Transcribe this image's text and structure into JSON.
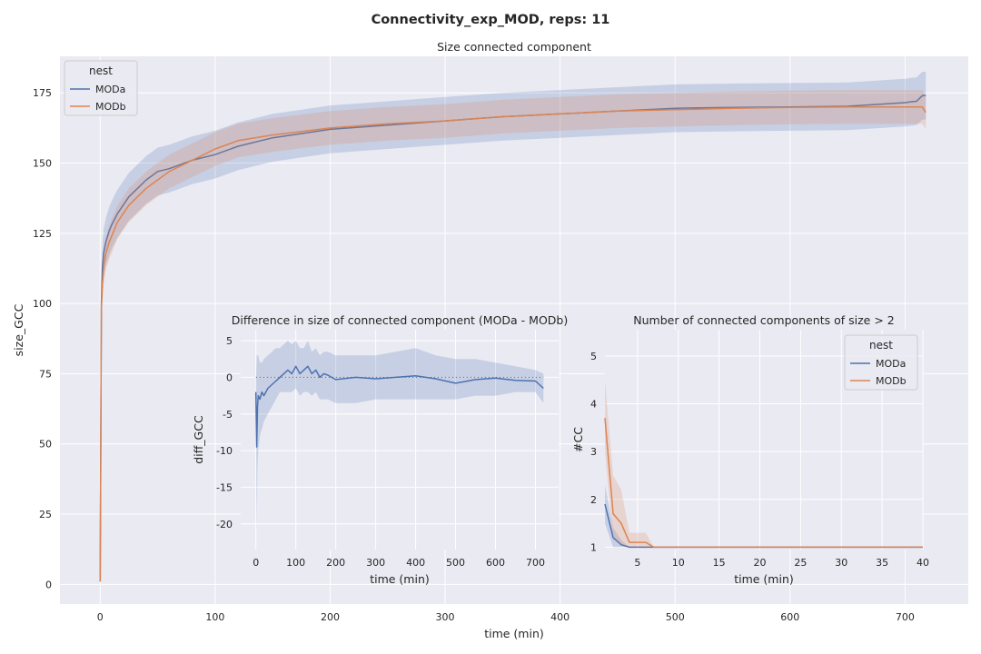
{
  "figure": {
    "suptitle": "Connectivity_exp_MOD, reps: 11"
  },
  "colors": {
    "MODa": "#4c72b0",
    "MODb": "#dd8452",
    "axes_bg": "#eaeaf2",
    "grid": "#ffffff",
    "zero_line": "#c44e52"
  },
  "chart_data": [
    {
      "id": "main",
      "type": "line",
      "title": "Size connected component",
      "xlabel": "time (min)",
      "ylabel": "size_GCC",
      "xlim": [
        -35,
        755
      ],
      "ylim": [
        -7,
        188
      ],
      "xticks": [
        0,
        100,
        200,
        300,
        400,
        500,
        600,
        700
      ],
      "yticks": [
        0,
        25,
        50,
        75,
        100,
        125,
        150,
        175
      ],
      "grid": true,
      "legend": {
        "title": "nest",
        "placement": "top-left",
        "entries": [
          "MODa",
          "MODb"
        ]
      },
      "series": [
        {
          "name": "MODa",
          "x": [
            0,
            1,
            2,
            3,
            5,
            8,
            10,
            15,
            20,
            25,
            30,
            40,
            50,
            60,
            80,
            100,
            120,
            150,
            200,
            250,
            300,
            350,
            400,
            450,
            500,
            550,
            600,
            650,
            700,
            705,
            710,
            715,
            718
          ],
          "y": [
            1,
            100,
            113,
            118,
            122,
            126,
            128,
            132,
            135,
            138,
            140,
            144,
            147,
            148,
            151,
            153,
            156,
            159,
            162,
            163.5,
            165,
            166.5,
            167.5,
            168.5,
            169.5,
            169.8,
            170,
            170.2,
            171.5,
            171.8,
            172,
            174,
            174
          ],
          "band": [
            0,
            8.5
          ]
        },
        {
          "name": "MODb",
          "x": [
            0,
            1,
            2,
            3,
            5,
            8,
            10,
            15,
            20,
            25,
            30,
            40,
            50,
            60,
            80,
            100,
            120,
            150,
            200,
            250,
            300,
            350,
            400,
            450,
            500,
            550,
            600,
            650,
            700,
            705,
            710,
            715,
            718
          ],
          "y": [
            1,
            98,
            107,
            113,
            118,
            122,
            124,
            129,
            132,
            135,
            137,
            141,
            144,
            147,
            151,
            155,
            158,
            160,
            162.5,
            164,
            165,
            166.5,
            167.5,
            168.5,
            169,
            169.5,
            169.8,
            170,
            170,
            170,
            170,
            170,
            168
          ],
          "band": [
            0,
            6
          ]
        }
      ]
    },
    {
      "id": "inset_diff",
      "type": "line",
      "title": "Difference in size of connected component (MODa - MODb)",
      "xlabel": "time (min)",
      "ylabel": "diff_GCC",
      "xlim": [
        -38,
        758
      ],
      "ylim": [
        -23.5,
        6.5
      ],
      "xticks": [
        0,
        100,
        200,
        300,
        400,
        500,
        600,
        700
      ],
      "yticks": [
        5,
        0,
        -5,
        -10,
        -15,
        -20
      ],
      "grid": true,
      "reference_line": 0,
      "series": [
        {
          "name": "MODa",
          "x": [
            0,
            2,
            4,
            6,
            10,
            15,
            20,
            30,
            40,
            50,
            60,
            70,
            80,
            90,
            100,
            110,
            120,
            130,
            140,
            150,
            160,
            170,
            180,
            200,
            250,
            300,
            350,
            400,
            450,
            500,
            550,
            600,
            650,
            700,
            720
          ],
          "y": [
            -2,
            -9.5,
            -4,
            -2.5,
            -3,
            -2,
            -2.5,
            -1.5,
            -1,
            -0.5,
            0,
            0.5,
            1,
            0.5,
            1.5,
            0.5,
            1,
            1.5,
            0.5,
            1,
            0,
            0.5,
            0.3,
            -0.3,
            0,
            -0.2,
            0,
            0.2,
            -0.2,
            -0.8,
            -0.3,
            -0.1,
            -0.4,
            -0.5,
            -1.5
          ],
          "lower": [
            -3,
            -21,
            -12,
            -10,
            -8,
            -7,
            -6,
            -5,
            -4,
            -3,
            -2,
            -2,
            -2,
            -2,
            -1.5,
            -2.5,
            -2,
            -2,
            -2.5,
            -2,
            -3,
            -3,
            -3,
            -3.5,
            -3.5,
            -3,
            -3,
            -3,
            -3,
            -3,
            -2.5,
            -2.5,
            -2,
            -2,
            -3.5
          ],
          "upper": [
            -1,
            3,
            3,
            3,
            2,
            2,
            2.5,
            3,
            3.5,
            4,
            4,
            4.5,
            5,
            4.5,
            5,
            4,
            4,
            5,
            3.5,
            4,
            3,
            3.5,
            3.5,
            3,
            3,
            3,
            3.5,
            4,
            3,
            2.5,
            2.5,
            2,
            1.5,
            1,
            0.5
          ]
        }
      ]
    },
    {
      "id": "inset_cc",
      "type": "line",
      "title": "Number of connected components of size > 2",
      "xlabel": "time (min)",
      "ylabel": "#CC",
      "xlim": [
        1,
        40
      ],
      "ylim": [
        0.95,
        5.55
      ],
      "xticks": [
        5,
        10,
        15,
        20,
        25,
        30,
        35,
        40
      ],
      "yticks": [
        1,
        2,
        3,
        4,
        5
      ],
      "grid": true,
      "legend": {
        "title": "nest",
        "placement": "top-right",
        "entries": [
          "MODa",
          "MODb"
        ]
      },
      "series": [
        {
          "name": "MODa",
          "x": [
            1,
            2,
            3,
            4,
            5,
            6,
            7,
            10,
            20,
            30,
            40
          ],
          "y": [
            1.9,
            1.2,
            1.05,
            1,
            1,
            1,
            1,
            1,
            1,
            1,
            1
          ],
          "lower": [
            1.5,
            1,
            1,
            1,
            1,
            1,
            1,
            1,
            1,
            1,
            1
          ],
          "upper": [
            2.3,
            1.4,
            1.15,
            1,
            1,
            1,
            1,
            1,
            1,
            1,
            1
          ]
        },
        {
          "name": "MODb",
          "x": [
            1,
            2,
            3,
            4,
            5,
            6,
            7,
            10,
            20,
            30,
            40
          ],
          "y": [
            3.7,
            1.7,
            1.5,
            1.1,
            1.1,
            1.1,
            1,
            1,
            1,
            1,
            1
          ],
          "lower": [
            3.0,
            1.2,
            1.05,
            1,
            1,
            1,
            1,
            1,
            1,
            1,
            1
          ],
          "upper": [
            4.5,
            2.5,
            2.2,
            1.3,
            1.3,
            1.3,
            1,
            1,
            1,
            1,
            1
          ]
        }
      ]
    }
  ]
}
